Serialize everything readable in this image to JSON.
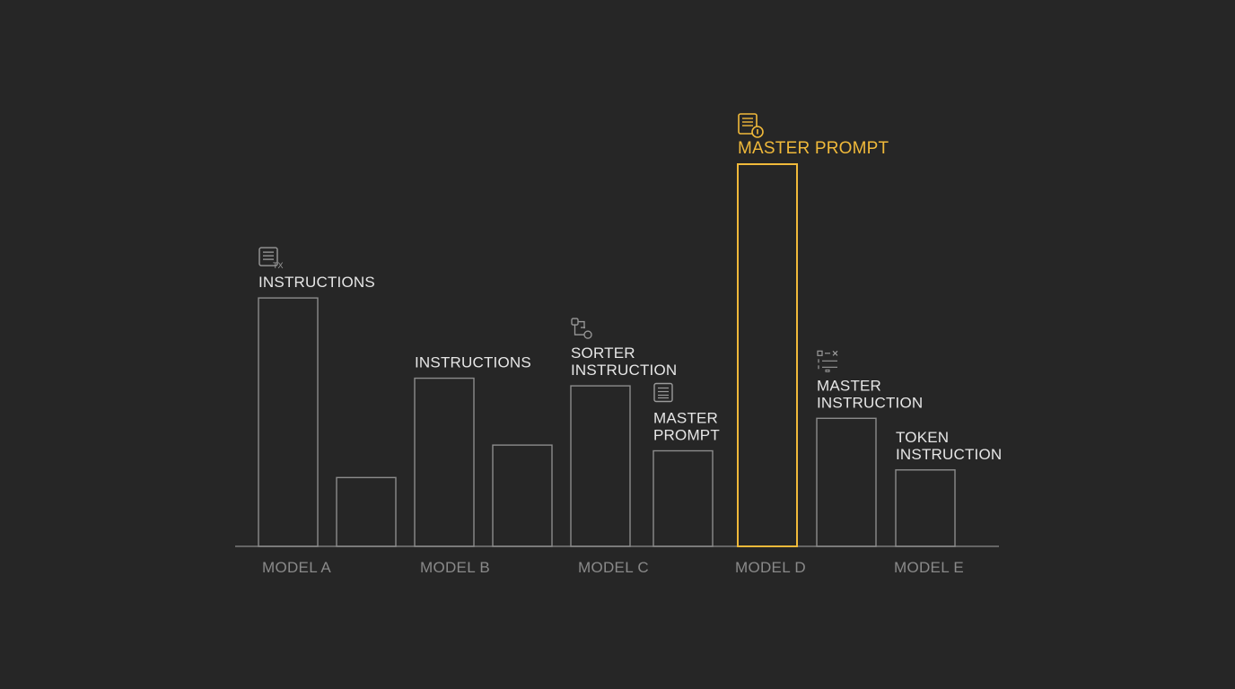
{
  "chart_data": {
    "type": "bar",
    "categories": [
      "MODEL A",
      "MODEL B",
      "MODEL C",
      "MODEL D",
      "MODEL E"
    ],
    "ylim": [
      0,
      100
    ],
    "grid": false,
    "title": "",
    "xlabel": "",
    "ylabel": "",
    "colors": {
      "background": "#262626",
      "bar_outline": "#8c8c8c",
      "highlight": "#f0b93a",
      "label": "#e6e6e6",
      "tick_label": "#8a8a8a",
      "axis": "#7a7a7a"
    },
    "bars": [
      {
        "category": "MODEL A",
        "value": 65,
        "label": [
          "INSTRUCTIONS"
        ],
        "icon": "document-text-icon",
        "highlight": false
      },
      {
        "category": "MODEL A",
        "value": 18,
        "label": [],
        "icon": "",
        "highlight": false
      },
      {
        "category": "MODEL B",
        "value": 44,
        "label": [
          "INSTRUCTIONS"
        ],
        "icon": "",
        "highlight": false
      },
      {
        "category": "MODEL B",
        "value": 26.5,
        "label": [],
        "icon": "",
        "highlight": false
      },
      {
        "category": "MODEL C",
        "value": 42,
        "label": [
          "SORTER",
          "INSTRUCTION"
        ],
        "icon": "workflow-icon",
        "highlight": false
      },
      {
        "category": "MODEL C",
        "value": 25,
        "label": [
          "MASTER",
          "PROMPT"
        ],
        "icon": "document-icon",
        "highlight": false
      },
      {
        "category": "MODEL D",
        "value": 100,
        "label": [
          "MASTER PROMPT"
        ],
        "icon": "document-alert-icon",
        "highlight": true
      },
      {
        "category": "MODEL D",
        "value": 33.5,
        "label": [
          "MASTER",
          "INSTRUCTION"
        ],
        "icon": "checklist-icon",
        "highlight": false
      },
      {
        "category": "MODEL E",
        "value": 20,
        "label": [
          "TOKEN",
          "INSTRUCTION"
        ],
        "icon": "",
        "highlight": false
      }
    ]
  }
}
